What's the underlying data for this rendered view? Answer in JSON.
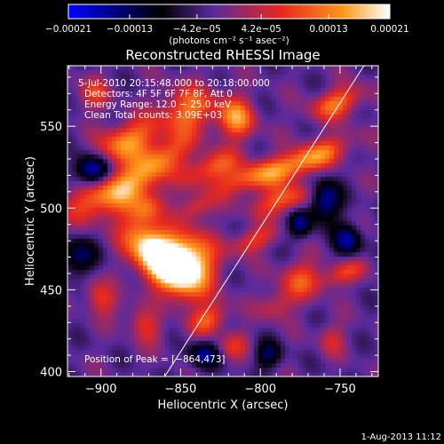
{
  "chart_data": {
    "type": "heatmap",
    "title": "Reconstructed RHESSI Image",
    "xlabel": "Heliocentric X (arcsec)",
    "ylabel": "Heliocentric Y (arcsec)",
    "xlim": [
      -921,
      -726
    ],
    "ylim": [
      397,
      587
    ],
    "x_ticks": [
      -900,
      -850,
      -800,
      -750
    ],
    "y_ticks": [
      400,
      450,
      500,
      550
    ],
    "x_tick_labels": [
      "−900",
      "−850",
      "−800",
      "−750"
    ],
    "y_tick_labels": [
      "400",
      "450",
      "500",
      "550"
    ],
    "colorbar": {
      "range": [
        -0.00021,
        0.00021
      ],
      "ticks": [
        -0.00021,
        -0.00013,
        -4.2e-05,
        4.2e-05,
        0.00013,
        0.00021
      ],
      "tick_labels": [
        "−0.00021",
        "−0.00013",
        "−4.2e−05",
        "4.2e−05",
        "0.00013",
        "0.00021"
      ],
      "label": "(photons cm⁻² s⁻¹ asec⁻²)",
      "colors": [
        "#0000ff",
        "#000000",
        "#5a2a9e",
        "#e8271e",
        "#ff9a1a",
        "#ffffff"
      ]
    },
    "annotations": [
      "5-Jul-2010 20:15:48.000 to 20:18:00.000",
      "Detectors: 4F 5F 6F 7F 8F, Att 0",
      "Energy Range: 12.0 − 25.0 keV",
      "Clean     Total counts: 3.09E+03"
    ],
    "peak_label": "Position of Peak = [−864,473]",
    "peak": [
      -864,
      473
    ],
    "limb_line": [
      [
        -860,
        397
      ],
      [
        -735,
        587
      ]
    ],
    "grid": false
  },
  "footer": {
    "timestamp": "1-Aug-2013 11:12"
  }
}
